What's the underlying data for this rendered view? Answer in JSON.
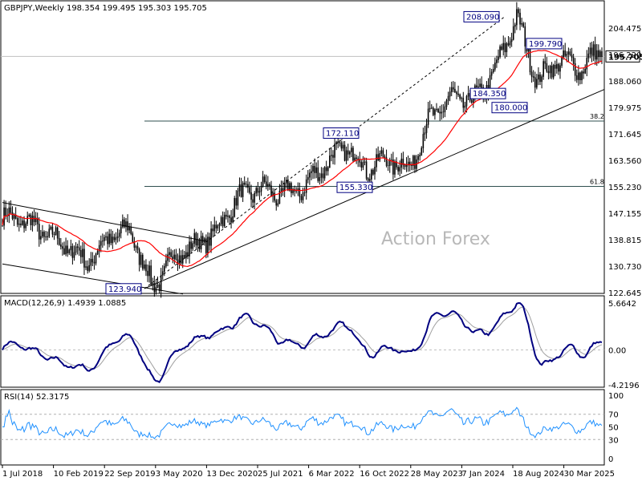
{
  "chart_data": {
    "type": "candlestick",
    "panels": [
      {
        "name": "price",
        "header": "GBPJPY,Weekly  198.354 199.495 195.303 195.705",
        "symbol": "GBPJPY",
        "timeframe": "Weekly",
        "ohlc_last": {
          "open": 198.354,
          "high": 199.495,
          "low": 195.303,
          "close": 195.705
        },
        "y_ticks": [
          "204.475",
          "196.220",
          "188.060",
          "179.975",
          "171.645",
          "163.560",
          "155.230",
          "147.155",
          "138.815",
          "130.730",
          "122.645"
        ],
        "ylim": [
          122.645,
          204.475
        ],
        "current_price_label": "195.705",
        "swing_points": [
          {
            "date": "Mar 2020",
            "value": 123.94,
            "label": "123.940"
          },
          {
            "date": "Jun 2022",
            "value": 172.11,
            "label": "172.110"
          },
          {
            "date": "Oct 2022",
            "value": 155.33,
            "label": "155.330"
          },
          {
            "date": "Jul 2024",
            "value": 208.09,
            "label": "208.090"
          },
          {
            "date": "Aug 2024",
            "value": 180.0,
            "label": "180.000"
          },
          {
            "date": "Oct 2024",
            "value": 199.79,
            "label": "199.790"
          },
          {
            "date": "Dec 2024",
            "value": 184.35,
            "label": "184.350"
          }
        ],
        "fib_levels": [
          {
            "label": "38.2",
            "value": 175.7
          },
          {
            "label": "61.8",
            "value": 155.5
          }
        ],
        "close_series": {
          "dates": [
            "Jul 2018",
            "Oct 2018",
            "Jan 2019",
            "Apr 2019",
            "Jul 2019",
            "Oct 2019",
            "Jan 2020",
            "Mar 2020",
            "Jun 2020",
            "Sep 2020",
            "Dec 2020",
            "Mar 2021",
            "Jun 2021",
            "Sep 2021",
            "Dec 2021",
            "Mar 2022",
            "Jun 2022",
            "Sep 2022",
            "Dec 2022",
            "Mar 2023",
            "Jun 2023",
            "Sep 2023",
            "Dec 2023",
            "Mar 2024",
            "Jul 2024",
            "Sep 2024",
            "Dec 2024",
            "Mar 2025",
            "May 2025"
          ],
          "values": [
            146,
            145,
            141,
            137,
            132,
            140,
            142,
            124,
            134,
            137,
            142,
            152,
            155,
            153,
            155,
            162,
            168,
            161,
            164,
            161,
            177,
            183,
            182,
            191,
            208,
            188,
            195,
            192,
            198
          ]
        }
      },
      {
        "name": "macd",
        "header": "MACD(12,26,9) 1.4939 1.0885",
        "params": [
          12,
          26,
          9
        ],
        "values": {
          "macd": 1.4939,
          "signal": 1.0885
        },
        "y_ticks": [
          "5.6642",
          "0.00",
          "-4.2196"
        ]
      },
      {
        "name": "rsi",
        "header": "RSI(14) 52.3175",
        "period": 14,
        "value": 52.3175,
        "y_ticks": [
          "100",
          "70",
          "50",
          "30",
          "0"
        ]
      }
    ],
    "x_labels": [
      "1 Jul 2018",
      "10 Feb 2019",
      "22 Sep 2019",
      "3 May 2020",
      "13 Dec 2020",
      "25 Jul 2021",
      "6 Mar 2022",
      "16 Oct 2022",
      "28 May 2023",
      "7 Jan 2024",
      "18 Aug 2024",
      "30 Mar 2025"
    ],
    "watermark": "Action Forex",
    "colors": {
      "ma": "#ff0000",
      "macd": "#000080",
      "signal": "#a0a0a0",
      "rsi": "#1e90ff",
      "annotation": "#000080"
    }
  }
}
